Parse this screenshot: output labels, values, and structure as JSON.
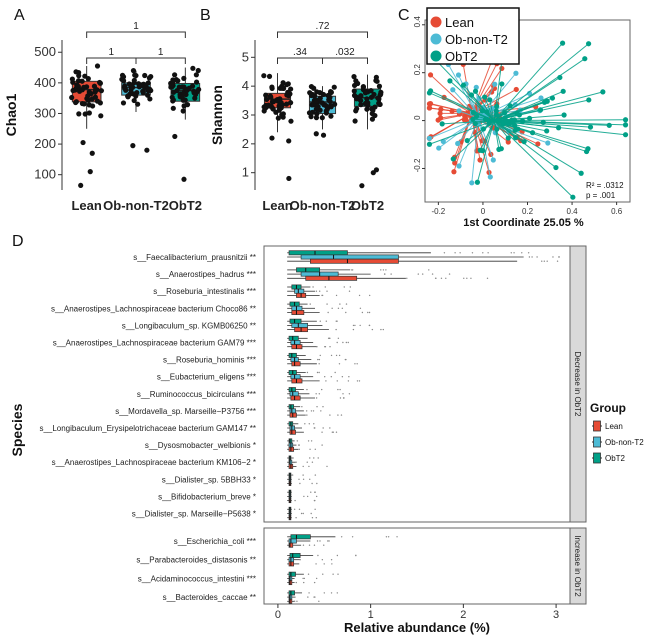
{
  "colors": {
    "lean": "#e64b35",
    "ob_non_t2": "#4dbbd5",
    "obt2": "#00a087",
    "outline": "#222222"
  },
  "panel_labels": [
    "A",
    "B",
    "C",
    "D"
  ],
  "chart_data": [
    {
      "type": "box",
      "panel": "A",
      "ylabel": "Chao1",
      "categories": [
        "Lean",
        "Ob-non-T2",
        "ObT2"
      ],
      "yticks": [
        100,
        200,
        300,
        400,
        500
      ],
      "ylim": [
        50,
        540
      ],
      "boxes": [
        {
          "q1": 338,
          "median": 378,
          "q3": 405,
          "whisker_low": 250,
          "whisker_high": 455
        },
        {
          "q1": 360,
          "median": 385,
          "q3": 400,
          "whisker_low": 305,
          "whisker_high": 440
        },
        {
          "q1": 340,
          "median": 375,
          "q3": 398,
          "whisker_low": 280,
          "whisker_high": 450
        }
      ],
      "outliers": [
        [
          170,
          110,
          65,
          205
        ],
        [
          195,
          180
        ],
        [
          225,
          85
        ]
      ],
      "comparisons": [
        {
          "pair": [
            0,
            2
          ],
          "label": "1"
        },
        {
          "pair": [
            0,
            1
          ],
          "label": "1"
        },
        {
          "pair": [
            1,
            2
          ],
          "label": "1"
        }
      ]
    },
    {
      "type": "box",
      "panel": "B",
      "ylabel": "Shannon",
      "categories": [
        "Lean",
        "Ob-non-T2",
        "ObT2"
      ],
      "yticks": [
        1,
        2,
        3,
        4,
        5
      ],
      "ylim": [
        0.4,
        5.6
      ],
      "boxes": [
        {
          "q1": 3.25,
          "median": 3.55,
          "q3": 3.75,
          "whisker_low": 2.4,
          "whisker_high": 4.45
        },
        {
          "q1": 3.05,
          "median": 3.45,
          "q3": 3.65,
          "whisker_low": 2.5,
          "whisker_high": 4.0
        },
        {
          "q1": 3.3,
          "median": 3.6,
          "q3": 3.9,
          "whisker_low": 2.5,
          "whisker_high": 4.4
        }
      ],
      "outliers": [
        [
          2.1,
          0.8,
          2.2
        ],
        [
          2.3,
          2.35
        ],
        [
          1.1,
          1.0,
          0.55
        ]
      ],
      "comparisons": [
        {
          "pair": [
            0,
            2
          ],
          "label": ".72"
        },
        {
          "pair": [
            0,
            1
          ],
          "label": ".34"
        },
        {
          "pair": [
            1,
            2
          ],
          "label": ".032"
        }
      ]
    },
    {
      "type": "scatter",
      "panel": "C",
      "xlabel": "1st Coordinate 25.05 %",
      "xticks": [
        -0.2,
        0,
        0.2,
        0.4,
        0.6
      ],
      "yticks": [
        -0.2,
        0,
        0.2,
        0.4
      ],
      "xlim": [
        -0.26,
        0.66
      ],
      "ylim": [
        -0.34,
        0.42
      ],
      "legend": [
        "Lean",
        "Ob-non-T2",
        "ObT2"
      ],
      "legend_position": "top-left",
      "centroids": [
        [
          -0.05,
          0.03
        ],
        [
          -0.02,
          0.01
        ],
        [
          0.05,
          0.0
        ]
      ],
      "annotation": [
        "R² = .0312",
        "p = .001"
      ]
    },
    {
      "type": "box",
      "panel": "D",
      "orientation": "horizontal",
      "xlabel": "Relative abundance (%)",
      "ylabel": "Species",
      "xticks": [
        0,
        1,
        2,
        3
      ],
      "xlim": [
        -0.15,
        3.15
      ],
      "legend_title": "Group",
      "legend": [
        "Lean",
        "Ob-non-T2",
        "ObT2"
      ],
      "facets": [
        "Decrease in ObT2",
        "Increase in ObT2"
      ],
      "species": [
        {
          "name": "s__Faecalibacterium_prausnitzii **",
          "facet": 0,
          "boxes": [
            [
              0.35,
              0.75,
              1.3,
              2.58
            ],
            [
              0.25,
              0.6,
              1.3,
              2.65
            ],
            [
              0.12,
              0.4,
              0.75,
              1.65
            ]
          ]
        },
        {
          "name": "s__Anaerostipes_hadrus ***",
          "facet": 0,
          "boxes": [
            [
              0.3,
              0.55,
              0.85,
              1.38
            ],
            [
              0.25,
              0.45,
              0.65,
              1.0
            ],
            [
              0.2,
              0.3,
              0.45,
              0.78
            ]
          ]
        },
        {
          "name": "s__Roseburia_intestinalis ***",
          "facet": 0,
          "boxes": [
            [
              0.2,
              0.25,
              0.3,
              0.45
            ],
            [
              0.18,
              0.22,
              0.28,
              0.4
            ],
            [
              0.15,
              0.2,
              0.25,
              0.35
            ]
          ]
        },
        {
          "name": "s__Anaerostipes_Lachnospiraceae bacterium Choco86 **",
          "facet": 0,
          "boxes": [
            [
              0.15,
              0.2,
              0.28,
              0.45
            ],
            [
              0.15,
              0.2,
              0.26,
              0.4
            ],
            [
              0.13,
              0.18,
              0.23,
              0.32
            ]
          ]
        },
        {
          "name": "s__Longibaculum_sp. KGMB06250 **",
          "facet": 0,
          "boxes": [
            [
              0.18,
              0.25,
              0.32,
              0.55
            ],
            [
              0.15,
              0.22,
              0.32,
              0.48
            ],
            [
              0.13,
              0.18,
              0.25,
              0.42
            ]
          ]
        },
        {
          "name": "s__Anaerostipes_Lachnospiraceae bacterium GAM79 ***",
          "facet": 0,
          "boxes": [
            [
              0.15,
              0.2,
              0.26,
              0.42
            ],
            [
              0.14,
              0.18,
              0.24,
              0.38
            ],
            [
              0.12,
              0.16,
              0.22,
              0.32
            ]
          ]
        },
        {
          "name": "s__Roseburia_hominis ***",
          "facet": 0,
          "boxes": [
            [
              0.15,
              0.18,
              0.24,
              0.42
            ],
            [
              0.14,
              0.18,
              0.22,
              0.36
            ],
            [
              0.12,
              0.15,
              0.2,
              0.3
            ]
          ]
        },
        {
          "name": "s__Eubacterium_eligens ***",
          "facet": 0,
          "boxes": [
            [
              0.15,
              0.2,
              0.26,
              0.45
            ],
            [
              0.14,
              0.18,
              0.24,
              0.38
            ],
            [
              0.12,
              0.16,
              0.2,
              0.3
            ]
          ]
        },
        {
          "name": "s__Ruminococcus_bicirculans ***",
          "facet": 0,
          "boxes": [
            [
              0.14,
              0.18,
              0.24,
              0.4
            ],
            [
              0.13,
              0.16,
              0.22,
              0.34
            ],
            [
              0.12,
              0.15,
              0.19,
              0.28
            ]
          ]
        },
        {
          "name": "s__Mordavella_sp. Marseille−P3756 ***",
          "facet": 0,
          "boxes": [
            [
              0.13,
              0.16,
              0.2,
              0.3
            ],
            [
              0.13,
              0.15,
              0.19,
              0.28
            ],
            [
              0.12,
              0.14,
              0.17,
              0.24
            ]
          ]
        },
        {
          "name": "s__Longibaculum_Erysipelotrichaceae bacterium GAM147 **",
          "facet": 0,
          "boxes": [
            [
              0.13,
              0.15,
              0.19,
              0.28
            ],
            [
              0.13,
              0.15,
              0.18,
              0.26
            ],
            [
              0.12,
              0.14,
              0.16,
              0.22
            ]
          ]
        },
        {
          "name": "s__Dysosmobacter_welbionis *",
          "facet": 0,
          "boxes": [
            [
              0.12,
              0.14,
              0.17,
              0.22
            ],
            [
              0.12,
              0.14,
              0.16,
              0.2
            ],
            [
              0.12,
              0.13,
              0.15,
              0.18
            ]
          ]
        },
        {
          "name": "s__Anaerostipes_Lachnospiraceae bacterium KM106−2 *",
          "facet": 0,
          "boxes": [
            [
              0.12,
              0.14,
              0.16,
              0.2
            ],
            [
              0.12,
              0.13,
              0.15,
              0.19
            ],
            [
              0.12,
              0.13,
              0.14,
              0.17
            ]
          ]
        },
        {
          "name": "s__Dialister_sp. 5BBH33 *",
          "facet": 0,
          "boxes": [
            [
              0.12,
              0.13,
              0.14,
              0.15
            ],
            [
              0.12,
              0.13,
              0.14,
              0.15
            ],
            [
              0.12,
              0.13,
              0.14,
              0.15
            ]
          ]
        },
        {
          "name": "s__Bifidobacterium_breve *",
          "facet": 0,
          "boxes": [
            [
              0.12,
              0.13,
              0.14,
              0.15
            ],
            [
              0.12,
              0.13,
              0.14,
              0.15
            ],
            [
              0.12,
              0.13,
              0.14,
              0.15
            ]
          ]
        },
        {
          "name": "s__Dialister_sp. Marseille−P5638 *",
          "facet": 0,
          "boxes": [
            [
              0.12,
              0.13,
              0.14,
              0.15
            ],
            [
              0.12,
              0.13,
              0.14,
              0.15
            ],
            [
              0.12,
              0.13,
              0.14,
              0.15
            ]
          ]
        },
        {
          "name": "s__Escherichia_coli ***",
          "facet": 1,
          "boxes": [
            [
              0.12,
              0.13,
              0.16,
              0.25
            ],
            [
              0.12,
              0.14,
              0.2,
              0.35
            ],
            [
              0.14,
              0.2,
              0.35,
              0.62
            ]
          ]
        },
        {
          "name": "s__Parabacteroides_distasonis **",
          "facet": 1,
          "boxes": [
            [
              0.12,
              0.14,
              0.17,
              0.23
            ],
            [
              0.12,
              0.14,
              0.17,
              0.24
            ],
            [
              0.13,
              0.16,
              0.24,
              0.38
            ]
          ]
        },
        {
          "name": "s__Acidaminococcus_intestini ***",
          "facet": 1,
          "boxes": [
            [
              0.12,
              0.13,
              0.15,
              0.18
            ],
            [
              0.12,
              0.13,
              0.15,
              0.18
            ],
            [
              0.12,
              0.14,
              0.19,
              0.28
            ]
          ]
        },
        {
          "name": "s__Bacteroides_caccae **",
          "facet": 1,
          "boxes": [
            [
              0.12,
              0.13,
              0.15,
              0.18
            ],
            [
              0.12,
              0.13,
              0.15,
              0.19
            ],
            [
              0.12,
              0.14,
              0.18,
              0.26
            ]
          ]
        }
      ]
    }
  ]
}
